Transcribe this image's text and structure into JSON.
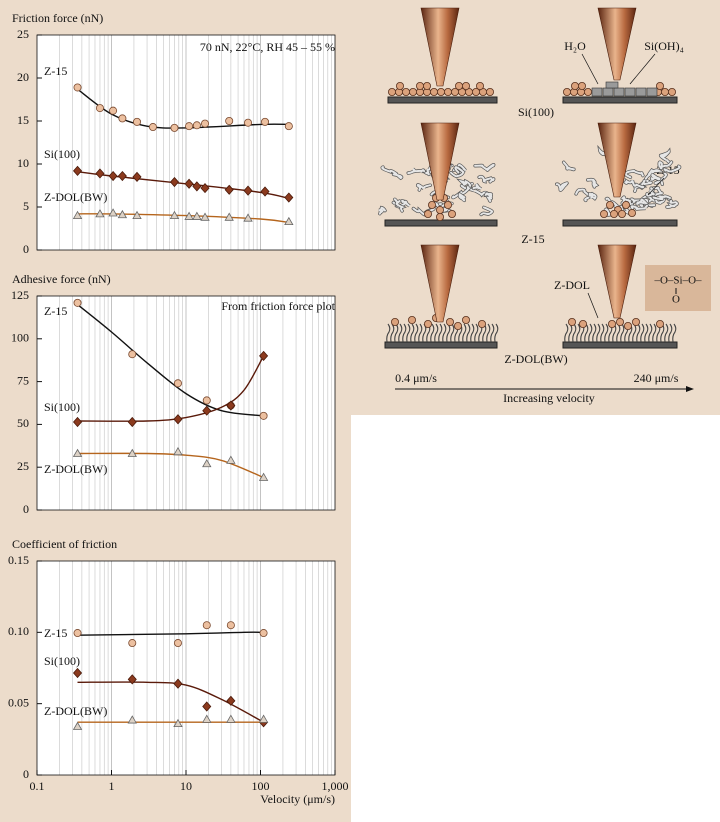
{
  "chart_data": [
    {
      "type": "scatter",
      "ylabel": "Friction force (nN)",
      "annotation": "70 nN, 22°C, RH 45 – 55 %",
      "xscale": "log",
      "xlim": [
        0.1,
        1000
      ],
      "ylim": [
        0,
        25
      ],
      "yticks": [
        0,
        5,
        10,
        15,
        20,
        25
      ],
      "grid": "x-minor",
      "series": [
        {
          "name": "Z-15",
          "marker": "circle",
          "color": "#ecc0a0",
          "edge": "#7a4a30",
          "line_color": "#111111",
          "x": [
            0.35,
            0.7,
            1.05,
            1.4,
            2.2,
            3.6,
            7,
            11,
            14,
            18,
            38,
            68,
            115,
            240
          ],
          "values": [
            18.9,
            16.5,
            16.2,
            15.3,
            14.9,
            14.3,
            14.2,
            14.4,
            14.5,
            14.7,
            15.0,
            14.8,
            14.9,
            14.4
          ],
          "fit_x": [
            0.35,
            1,
            3,
            10,
            100,
            240
          ],
          "fit_values": [
            18.7,
            15.8,
            14.4,
            14.2,
            14.6,
            14.6
          ]
        },
        {
          "name": "Si(100)",
          "marker": "diamond",
          "color": "#8b3a1e",
          "edge": "#4a1a0a",
          "line_color": "#5a1a0a",
          "x": [
            0.35,
            0.7,
            1.05,
            1.4,
            2.2,
            7,
            11,
            14,
            18,
            38,
            68,
            115,
            240
          ],
          "values": [
            9.2,
            8.9,
            8.6,
            8.6,
            8.5,
            7.9,
            7.7,
            7.4,
            7.2,
            7.0,
            6.9,
            6.8,
            6.1
          ],
          "fit_x": [
            0.35,
            1,
            10,
            100,
            240
          ],
          "fit_values": [
            9.1,
            8.6,
            7.7,
            6.7,
            6.0
          ]
        },
        {
          "name": "Z-DOL(BW)",
          "marker": "triangle",
          "color": "#ddd2c6",
          "edge": "#666666",
          "line_color": "#b5651d",
          "x": [
            0.35,
            0.7,
            1.05,
            1.4,
            2.2,
            7,
            11,
            14,
            18,
            38,
            68,
            240
          ],
          "values": [
            4.0,
            4.2,
            4.3,
            4.1,
            4.0,
            4.0,
            3.9,
            3.9,
            3.8,
            3.8,
            3.7,
            3.3
          ],
          "fit_x": [
            0.35,
            1,
            10,
            100,
            240
          ],
          "fit_values": [
            4.2,
            4.2,
            4.0,
            3.6,
            3.2
          ]
        }
      ]
    },
    {
      "type": "scatter",
      "ylabel": "Adhesive force (nN)",
      "annotation": "From friction force plot",
      "xscale": "log",
      "xlim": [
        0.1,
        1000
      ],
      "ylim": [
        0,
        125
      ],
      "yticks": [
        0,
        25,
        50,
        75,
        100,
        125
      ],
      "grid": "x-minor",
      "series": [
        {
          "name": "Z-15",
          "marker": "circle",
          "color": "#ecc0a0",
          "edge": "#7a4a30",
          "line_color": "#111111",
          "x": [
            0.35,
            1.9,
            7.8,
            19,
            40,
            110
          ],
          "values": [
            121,
            91,
            74,
            64,
            61,
            55
          ],
          "fit_x": [
            0.35,
            1,
            3,
            10,
            30,
            110
          ],
          "fit_values": [
            120,
            104,
            86,
            68,
            58,
            55
          ]
        },
        {
          "name": "Si(100)",
          "marker": "diamond",
          "color": "#8b3a1e",
          "edge": "#4a1a0a",
          "line_color": "#5a1a0a",
          "x": [
            0.35,
            1.9,
            7.8,
            19,
            40,
            110
          ],
          "values": [
            51.4,
            51.4,
            53,
            58,
            61,
            90
          ],
          "fit_x": [
            0.35,
            3,
            10,
            30,
            60,
            110
          ],
          "fit_values": [
            52,
            52,
            54,
            60,
            70,
            90
          ]
        },
        {
          "name": "Z-DOL(BW)",
          "marker": "triangle",
          "color": "#ddd2c6",
          "edge": "#666666",
          "line_color": "#b5651d",
          "x": [
            0.35,
            1.9,
            7.8,
            19,
            40,
            110
          ],
          "values": [
            33,
            33,
            34,
            27,
            29,
            19
          ],
          "fit_x": [
            0.35,
            3,
            10,
            30,
            110
          ],
          "fit_values": [
            33,
            33,
            32,
            29,
            19
          ]
        }
      ]
    },
    {
      "type": "scatter",
      "ylabel": "Coefficient of friction",
      "xlabel": "Velocity (μm/s)",
      "xscale": "log",
      "xlim": [
        0.1,
        1000
      ],
      "xticks": [
        0.1,
        1,
        10,
        100,
        {
          "value": 1000,
          "label": "1,000"
        }
      ],
      "ylim": [
        0,
        0.15
      ],
      "yticks": [
        0,
        0.05,
        {
          "value": 0.1,
          "label": "0.10"
        },
        0.15
      ],
      "grid": "x-minor",
      "series": [
        {
          "name": "Z-15",
          "marker": "circle",
          "color": "#ecc0a0",
          "edge": "#7a4a30",
          "line_color": "#111111",
          "x": [
            0.35,
            1.9,
            7.8,
            19,
            40,
            110
          ],
          "values": [
            0.0995,
            0.0925,
            0.0925,
            0.105,
            0.105,
            0.0995
          ],
          "fit_x": [
            0.35,
            10,
            60,
            110
          ],
          "fit_values": [
            0.098,
            0.099,
            0.1,
            0.1
          ]
        },
        {
          "name": "Si(100)",
          "marker": "diamond",
          "color": "#8b3a1e",
          "edge": "#4a1a0a",
          "line_color": "#5a1a0a",
          "x": [
            0.35,
            1.9,
            7.8,
            19,
            40,
            110
          ],
          "values": [
            0.0715,
            0.067,
            0.064,
            0.048,
            0.052,
            0.037
          ],
          "fit_x": [
            0.35,
            3,
            10,
            30,
            110
          ],
          "fit_values": [
            0.065,
            0.065,
            0.063,
            0.053,
            0.037
          ]
        },
        {
          "name": "Z-DOL(BW)",
          "marker": "triangle",
          "color": "#ddd2c6",
          "edge": "#666666",
          "line_color": "#b5651d",
          "x": [
            0.35,
            1.9,
            7.8,
            19,
            40,
            110
          ],
          "values": [
            0.034,
            0.0385,
            0.036,
            0.039,
            0.039,
            0.039
          ],
          "fit_x": [
            0.35,
            110
          ],
          "fit_values": [
            0.037,
            0.037
          ]
        }
      ]
    }
  ],
  "schematic": {
    "row_labels": [
      "Si(100)",
      "Z-15",
      "Z-DOL(BW)"
    ],
    "callouts": [
      "H₂O",
      "Si(OH)₄",
      "Z-15",
      "Z-DOL"
    ],
    "formula": [
      "–O–Si–O–",
      "O"
    ],
    "velocity_start": "0.4 μm/s",
    "velocity_end": "240 μm/s",
    "velocity_label": "Increasing velocity"
  }
}
